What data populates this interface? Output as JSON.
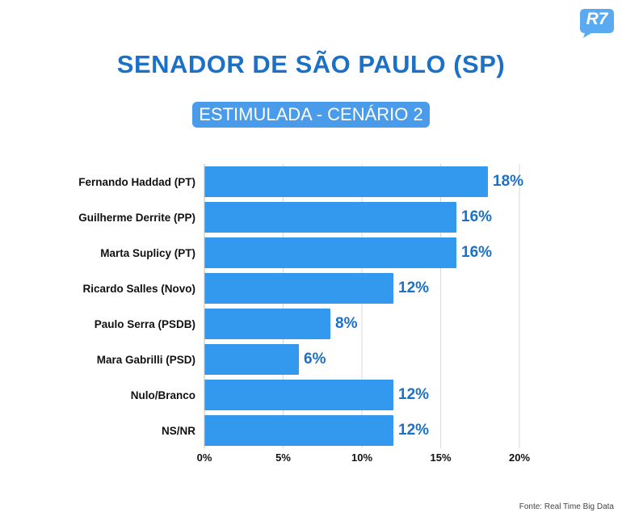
{
  "header": {
    "logo_text": "R7",
    "title": "SENADOR DE SÃO PAULO (SP)",
    "subtitle": "ESTIMULADA - CENÁRIO 2"
  },
  "footer": {
    "source": "Fonte: Real Time Big Data"
  },
  "colors": {
    "bar": "#3399ee",
    "title": "#1b71c8",
    "value_label": "#1b71c8",
    "logo": "#5aaaf2"
  },
  "chart_data": {
    "type": "bar",
    "orientation": "horizontal",
    "categories": [
      "Fernando Haddad (PT)",
      "Guilherme Derrite (PP)",
      "Marta Suplicy (PT)",
      "Ricardo Salles (Novo)",
      "Paulo Serra (PSDB)",
      "Mara Gabrilli (PSD)",
      "Nulo/Branco",
      "NS/NR"
    ],
    "values": [
      18,
      16,
      16,
      12,
      8,
      6,
      12,
      12
    ],
    "value_labels": [
      "18%",
      "16%",
      "16%",
      "12%",
      "8%",
      "6%",
      "12%",
      "12%"
    ],
    "xlim": [
      0,
      20
    ],
    "xticks": [
      0,
      5,
      10,
      15,
      20
    ],
    "xtick_labels": [
      "0%",
      "5%",
      "10%",
      "15%",
      "20%"
    ],
    "grid": true,
    "legend": "none"
  }
}
